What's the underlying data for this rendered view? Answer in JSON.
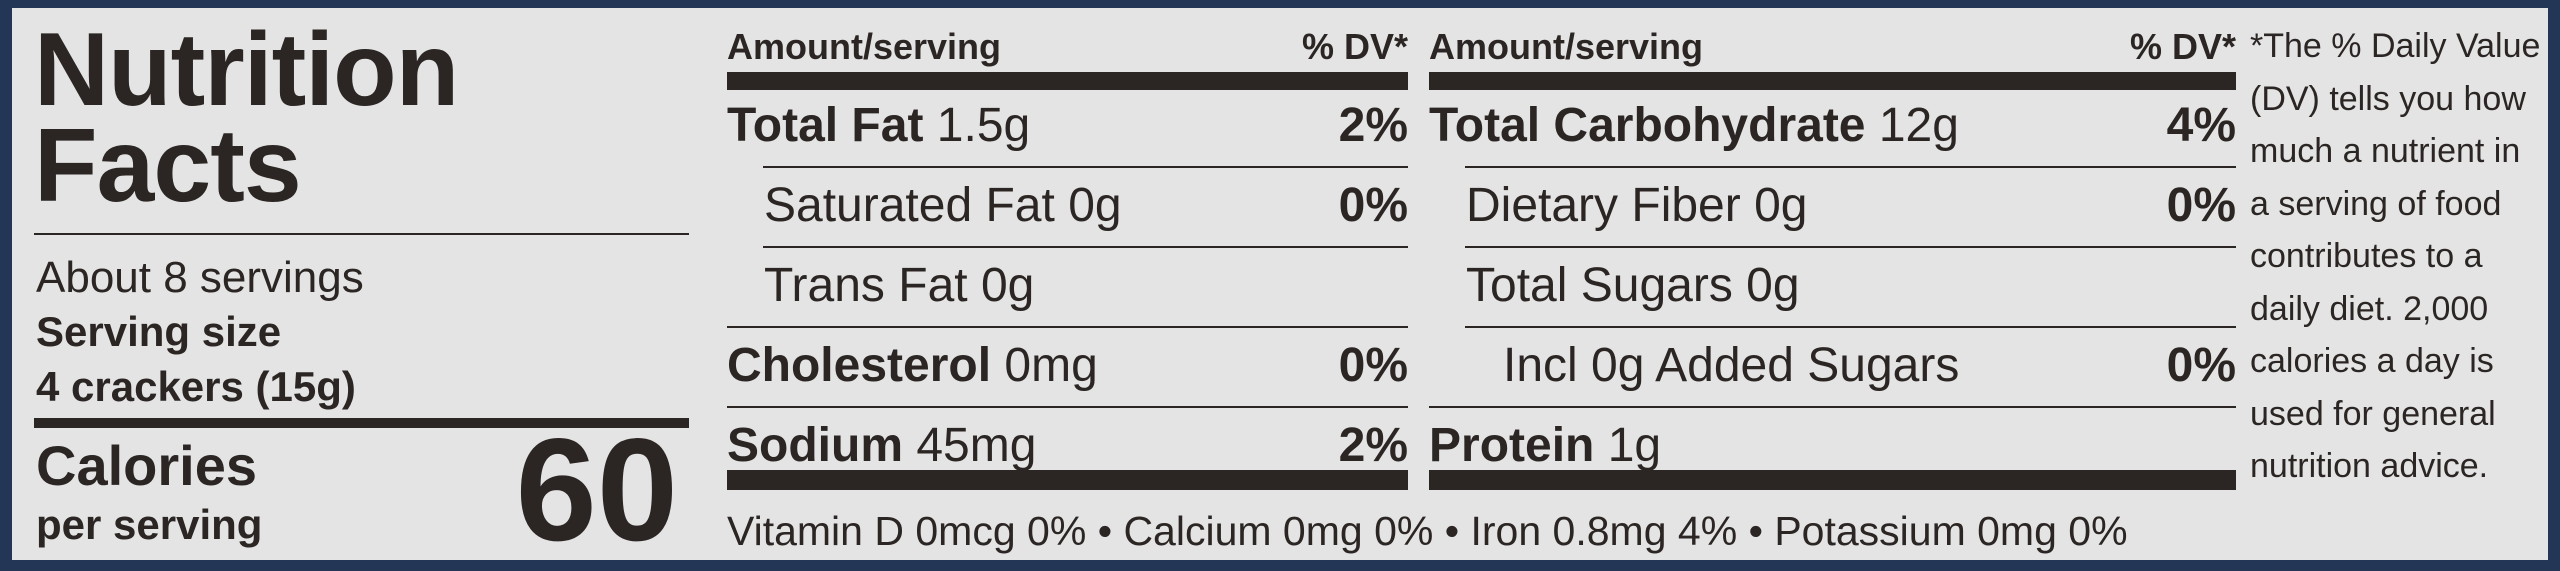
{
  "title": "Nutrition Facts",
  "servings": "About 8 servings",
  "serving_size": {
    "label": "Serving size",
    "value": "4 crackers (15g)"
  },
  "calories": {
    "label": "Calories",
    "sublabel": "per serving",
    "value": "60"
  },
  "columns": [
    {
      "header": {
        "amount": "Amount/serving",
        "dv": "% DV*"
      },
      "rows": [
        {
          "name": "Total Fat",
          "amount": "1.5g",
          "dv": "2%",
          "bold": true,
          "indent": 0
        },
        {
          "name": "Saturated Fat",
          "amount": "0g",
          "dv": "0%",
          "bold": false,
          "indent": 1
        },
        {
          "name": "Trans Fat",
          "amount": "0g",
          "bold": false,
          "indent": 1
        },
        {
          "name": "Cholesterol",
          "amount": "0mg",
          "dv": "0%",
          "bold": true,
          "indent": 0
        },
        {
          "name": "Sodium",
          "amount": "45mg",
          "dv": "2%",
          "bold": true,
          "indent": 0
        }
      ]
    },
    {
      "header": {
        "amount": "Amount/serving",
        "dv": "% DV*"
      },
      "rows": [
        {
          "name": "Total Carbohydrate",
          "amount": "12g",
          "dv": "4%",
          "bold": true,
          "indent": 0
        },
        {
          "name": "Dietary Fiber",
          "amount": "0g",
          "dv": "0%",
          "bold": false,
          "indent": 1
        },
        {
          "name": "Total Sugars",
          "amount": "0g",
          "bold": false,
          "indent": 1
        },
        {
          "name": "Incl 0g Added Sugars",
          "dv": "0%",
          "bold": false,
          "indent": 2
        },
        {
          "name": "Protein",
          "amount": "1g",
          "bold": true,
          "indent": 0
        }
      ]
    }
  ],
  "vitamins": [
    "Vitamin D 0mcg 0%",
    "Calcium 0mg 0%",
    "Iron 0.8mg 4%",
    "Potassium 0mg 0%"
  ],
  "vitamins_separator": "•",
  "footnote": "*The % Daily Value (DV) tells you how much a nutrient in a serving of food contributes to a daily diet. 2,000 calories a day is used for general nutrition advice."
}
